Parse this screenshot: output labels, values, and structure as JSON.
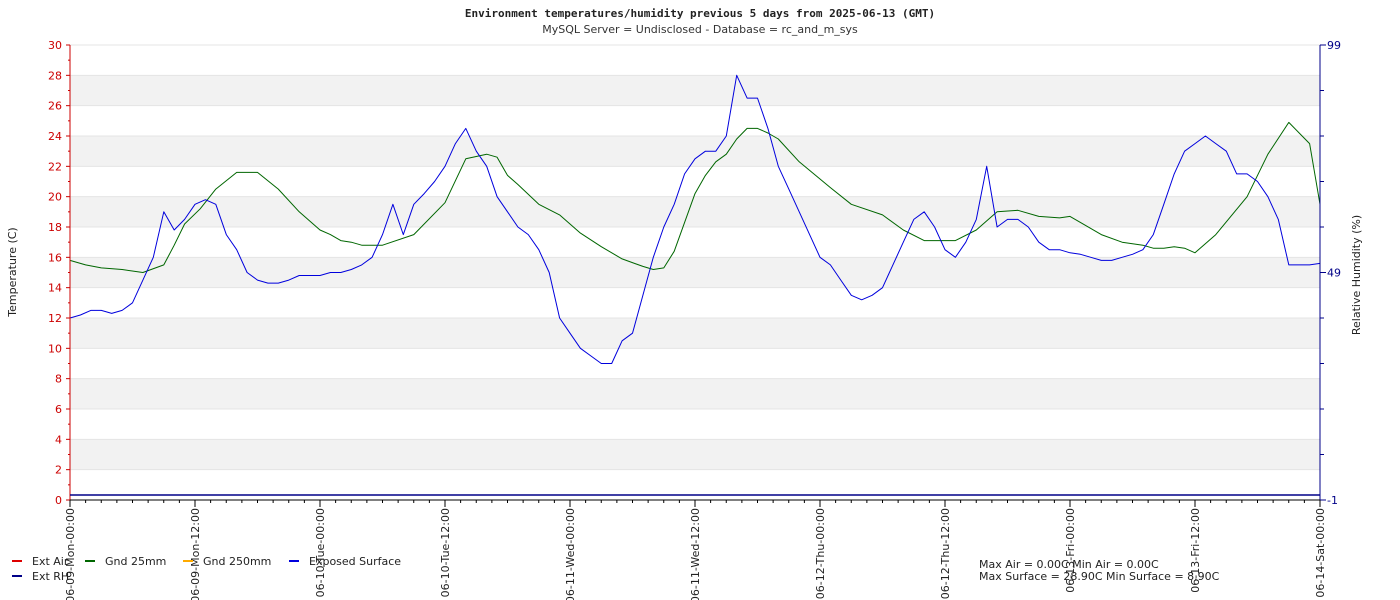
{
  "chart_data": {
    "type": "line",
    "title": "Environment temperatures/humidity previous 5     days from 2025-06-13 (GMT)",
    "subtitle": "MySQL Server = Undisclosed - Database = rc_and_m_sys",
    "ylabel": "Temperature (C)",
    "y2label": "Relative Humidity (%)",
    "ylim": [
      0,
      30
    ],
    "y2lim": [
      -1,
      99
    ],
    "yticks": [
      "0",
      "2",
      "4",
      "6",
      "8",
      "10",
      "12",
      "14",
      "16",
      "18",
      "20",
      "22",
      "24",
      "26",
      "28",
      "30"
    ],
    "y2ticks": [
      "-1",
      "49",
      "99"
    ],
    "xlim": [
      0,
      120
    ],
    "xticks": [
      {
        "hour": 0,
        "label": "06-09-Mon-00:00"
      },
      {
        "hour": 12,
        "label": "06-09-Mon-12:00"
      },
      {
        "hour": 24,
        "label": "06-10-Tue-00:00"
      },
      {
        "hour": 36,
        "label": "06-10-Tue-12:00"
      },
      {
        "hour": 48,
        "label": "06-11-Wed-00:00"
      },
      {
        "hour": 60,
        "label": "06-11-Wed-12:00"
      },
      {
        "hour": 72,
        "label": "06-12-Thu-00:00"
      },
      {
        "hour": 84,
        "label": "06-12-Thu-12:00"
      },
      {
        "hour": 96,
        "label": "06-13-Fri-00:00"
      },
      {
        "hour": 108,
        "label": "06-13-Fri-12:00"
      },
      {
        "hour": 120,
        "label": "06-14-Sat-00:00"
      }
    ],
    "grid": true,
    "legend_position": "bottom-left",
    "series": [
      {
        "name": "Ext Air",
        "color": "#dd0000",
        "axis": "temperature",
        "x": [],
        "values": []
      },
      {
        "name": "Ext RH",
        "color": "#000088",
        "axis": "humidity",
        "x": [],
        "values": []
      },
      {
        "name": "Gnd 25mm",
        "color": "#006600",
        "axis": "temperature",
        "x": [
          0,
          1.5,
          3,
          5,
          7,
          9,
          10,
          11,
          12.5,
          14,
          16,
          18,
          20,
          22,
          24,
          25,
          26,
          27,
          28,
          30,
          33,
          36,
          38,
          40,
          41,
          42,
          43,
          45,
          47,
          49,
          51,
          53,
          55,
          56,
          57,
          58,
          59,
          60,
          61,
          62,
          63,
          64,
          65,
          66,
          67,
          68,
          70,
          73,
          75,
          78,
          80,
          82,
          85,
          87,
          89,
          91,
          93,
          95,
          96,
          97,
          99,
          101,
          103,
          104,
          105,
          106,
          107,
          108,
          110,
          113,
          115,
          117,
          119,
          120
        ],
        "values": [
          15.8,
          15.5,
          15.3,
          15.2,
          15.0,
          15.5,
          16.8,
          18.2,
          19.2,
          20.5,
          21.6,
          21.6,
          20.5,
          19.0,
          17.8,
          17.5,
          17.1,
          17.0,
          16.8,
          16.8,
          17.5,
          19.6,
          22.5,
          22.8,
          22.6,
          21.4,
          20.8,
          19.5,
          18.8,
          17.6,
          16.7,
          15.9,
          15.4,
          15.2,
          15.3,
          16.4,
          18.3,
          20.2,
          21.4,
          22.3,
          22.8,
          23.8,
          24.5,
          24.5,
          24.2,
          23.8,
          22.3,
          20.6,
          19.5,
          18.8,
          17.8,
          17.1,
          17.1,
          17.8,
          19.0,
          19.1,
          18.7,
          18.6,
          18.7,
          18.3,
          17.5,
          17.0,
          16.8,
          16.6,
          16.6,
          16.7,
          16.6,
          16.3,
          17.5,
          20.0,
          22.8,
          24.9,
          23.5,
          19.5
        ]
      },
      {
        "name": "Gnd 250mm",
        "color": "#ffaa00",
        "axis": "temperature",
        "x": [],
        "values": []
      },
      {
        "name": "Exposed Surface",
        "color": "#0000dd",
        "axis": "temperature",
        "x": [
          0,
          1,
          2,
          3,
          4,
          5,
          6,
          7,
          8,
          9,
          10,
          11,
          12,
          13,
          14,
          15,
          16,
          17,
          18,
          19,
          20,
          21,
          22,
          23,
          24,
          25,
          26,
          27,
          28,
          29,
          30,
          31,
          32,
          33,
          34,
          35,
          36,
          37,
          38,
          39,
          40,
          41,
          42,
          43,
          44,
          45,
          46,
          47,
          48,
          49,
          50,
          51,
          52,
          53,
          54,
          55,
          56,
          57,
          58,
          59,
          60,
          61,
          62,
          63,
          64,
          65,
          66,
          67,
          68,
          69,
          70,
          71,
          72,
          73,
          74,
          75,
          76,
          77,
          78,
          79,
          80,
          81,
          82,
          83,
          84,
          85,
          86,
          87,
          88,
          89,
          90,
          91,
          92,
          93,
          94,
          95,
          96,
          97,
          98,
          99,
          100,
          101,
          102,
          103,
          104,
          105,
          106,
          107,
          108,
          109,
          110,
          111,
          112,
          113,
          114,
          115,
          116,
          117,
          118,
          119,
          120
        ],
        "values": [
          12.0,
          12.2,
          12.5,
          12.5,
          12.3,
          12.5,
          13.0,
          14.5,
          16.0,
          19.0,
          17.8,
          18.5,
          19.5,
          19.8,
          19.5,
          17.5,
          16.5,
          15.0,
          14.5,
          14.3,
          14.3,
          14.5,
          14.8,
          14.8,
          14.8,
          15.0,
          15.0,
          15.2,
          15.5,
          16.0,
          17.5,
          19.5,
          17.5,
          19.5,
          20.2,
          21.0,
          22.0,
          23.5,
          24.5,
          23.0,
          22.0,
          20.0,
          19.0,
          18.0,
          17.5,
          16.5,
          15.0,
          12.0,
          11.0,
          10.0,
          9.5,
          9.0,
          9.0,
          10.5,
          11.0,
          13.5,
          16.0,
          18.0,
          19.5,
          21.5,
          22.5,
          23.0,
          23.0,
          24.0,
          28.0,
          26.5,
          26.5,
          24.5,
          22.0,
          20.5,
          19.0,
          17.5,
          16.0,
          15.5,
          14.5,
          13.5,
          13.2,
          13.5,
          14.0,
          15.5,
          17.0,
          18.5,
          19.0,
          18.0,
          16.5,
          16.0,
          17.0,
          18.5,
          22.0,
          18.0,
          18.5,
          18.5,
          18.0,
          17.0,
          16.5,
          16.5,
          16.3,
          16.2,
          16.0,
          15.8,
          15.8,
          16.0,
          16.2,
          16.5,
          17.5,
          19.5,
          21.5,
          23.0,
          23.5,
          24.0,
          23.5,
          23.0,
          21.5,
          21.5,
          21.0,
          20.0,
          18.5,
          15.5,
          15.5,
          15.5,
          15.6
        ]
      }
    ],
    "stats": {
      "line1": "Max Air = 0.00C Min Air = 0.00C",
      "line2": "Max Surface = 28.90C Min Surface = 8.90C"
    }
  }
}
